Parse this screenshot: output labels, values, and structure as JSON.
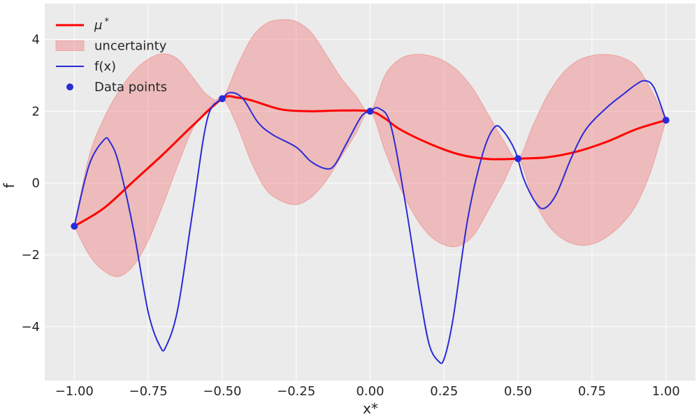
{
  "chart_data": {
    "type": "line",
    "xlabel": "x*",
    "ylabel": "f",
    "xlim": [
      -1.1,
      1.1
    ],
    "ylim": [
      -5.5,
      5.0
    ],
    "xticks": [
      -1.0,
      -0.75,
      -0.5,
      -0.25,
      0.0,
      0.25,
      0.5,
      0.75,
      1.0
    ],
    "xtick_labels": [
      "−1.00",
      "−0.75",
      "−0.50",
      "−0.25",
      "0.00",
      "0.25",
      "0.50",
      "0.75",
      "1.00"
    ],
    "yticks": [
      -4,
      -2,
      0,
      2,
      4
    ],
    "ytick_labels": [
      "−4",
      "−2",
      "0",
      "2",
      "4"
    ],
    "grid": true,
    "legend_position": "top-left",
    "colors": {
      "background": "#ebebeb",
      "grid": "#ffffff",
      "mu": "#ff0000",
      "band_fill": "#f08080",
      "band_edge": "#f08080",
      "f": "#2a2ad8",
      "points": "#2a2ad8"
    },
    "legend": [
      {
        "label": "μ*",
        "kind": "line",
        "series": "mu"
      },
      {
        "label": "uncertainty",
        "kind": "patch",
        "series": "band"
      },
      {
        "label": "f(x)",
        "kind": "line",
        "series": "f"
      },
      {
        "label": "Data points",
        "kind": "marker",
        "series": "points"
      }
    ],
    "series": [
      {
        "name": "μ*",
        "key": "mu",
        "x": [
          -1.0,
          -0.9,
          -0.8,
          -0.7,
          -0.6,
          -0.5,
          -0.45,
          -0.4,
          -0.3,
          -0.2,
          -0.1,
          0.0,
          0.05,
          0.1,
          0.2,
          0.3,
          0.4,
          0.5,
          0.6,
          0.7,
          0.8,
          0.9,
          1.0
        ],
        "y": [
          -1.2,
          -0.7,
          0.05,
          0.8,
          1.6,
          2.35,
          2.38,
          2.3,
          2.05,
          2.0,
          2.02,
          2.0,
          1.8,
          1.5,
          1.1,
          0.8,
          0.67,
          0.68,
          0.72,
          0.88,
          1.15,
          1.5,
          1.75
        ]
      },
      {
        "name": "f(x)",
        "key": "f",
        "x": [
          -1.0,
          -0.95,
          -0.9,
          -0.88,
          -0.85,
          -0.8,
          -0.75,
          -0.71,
          -0.69,
          -0.65,
          -0.6,
          -0.55,
          -0.5,
          -0.47,
          -0.43,
          -0.38,
          -0.33,
          -0.25,
          -0.2,
          -0.15,
          -0.12,
          -0.08,
          -0.03,
          0.0,
          0.03,
          0.07,
          0.12,
          0.17,
          0.2,
          0.23,
          0.25,
          0.28,
          0.33,
          0.38,
          0.42,
          0.45,
          0.49,
          0.52,
          0.56,
          0.59,
          0.63,
          0.68,
          0.73,
          0.8,
          0.86,
          0.9,
          0.93,
          0.96,
          1.0
        ],
        "y": [
          -1.2,
          0.5,
          1.2,
          1.15,
          0.55,
          -1.3,
          -3.6,
          -4.55,
          -4.55,
          -3.5,
          -0.8,
          1.8,
          2.35,
          2.52,
          2.35,
          1.7,
          1.35,
          1.0,
          0.6,
          0.4,
          0.5,
          1.1,
          1.85,
          2.0,
          2.08,
          1.6,
          -0.6,
          -3.2,
          -4.5,
          -4.95,
          -4.9,
          -3.8,
          -1.0,
          0.8,
          1.55,
          1.45,
          0.9,
          0.1,
          -0.55,
          -0.7,
          -0.3,
          0.7,
          1.5,
          2.1,
          2.5,
          2.75,
          2.85,
          2.65,
          1.75
        ]
      }
    ],
    "uncertainty": {
      "name": "uncertainty",
      "x": [
        -1.0,
        -0.95,
        -0.9,
        -0.85,
        -0.8,
        -0.75,
        -0.7,
        -0.65,
        -0.6,
        -0.55,
        -0.5,
        -0.45,
        -0.4,
        -0.35,
        -0.3,
        -0.25,
        -0.2,
        -0.15,
        -0.1,
        -0.05,
        0.0,
        0.05,
        0.1,
        0.15,
        0.2,
        0.25,
        0.3,
        0.35,
        0.4,
        0.45,
        0.5,
        0.55,
        0.6,
        0.65,
        0.7,
        0.75,
        0.8,
        0.85,
        0.9,
        0.95,
        1.0
      ],
      "lower": [
        -1.2,
        -2.0,
        -2.45,
        -2.6,
        -2.3,
        -1.6,
        -0.6,
        0.5,
        1.5,
        2.05,
        2.35,
        1.6,
        0.55,
        -0.2,
        -0.5,
        -0.6,
        -0.4,
        0.05,
        0.7,
        1.35,
        2.0,
        0.9,
        -0.1,
        -0.9,
        -1.45,
        -1.72,
        -1.75,
        -1.45,
        -0.75,
        0.0,
        0.68,
        -0.4,
        -1.15,
        -1.55,
        -1.72,
        -1.7,
        -1.5,
        -1.15,
        -0.6,
        0.35,
        1.75
      ],
      "upper": [
        -1.2,
        0.75,
        1.8,
        2.55,
        3.1,
        3.45,
        3.6,
        3.45,
        2.95,
        2.45,
        2.35,
        3.25,
        4.05,
        4.45,
        4.55,
        4.5,
        4.2,
        3.6,
        2.95,
        2.45,
        2.0,
        3.0,
        3.45,
        3.58,
        3.55,
        3.4,
        3.1,
        2.6,
        1.9,
        1.2,
        0.68,
        1.6,
        2.45,
        3.05,
        3.4,
        3.55,
        3.58,
        3.5,
        3.25,
        2.6,
        1.75
      ]
    },
    "points": {
      "name": "Data points",
      "x": [
        -1.0,
        -0.5,
        0.0,
        0.5,
        1.0
      ],
      "y": [
        -1.2,
        2.35,
        2.0,
        0.68,
        1.75
      ]
    }
  }
}
